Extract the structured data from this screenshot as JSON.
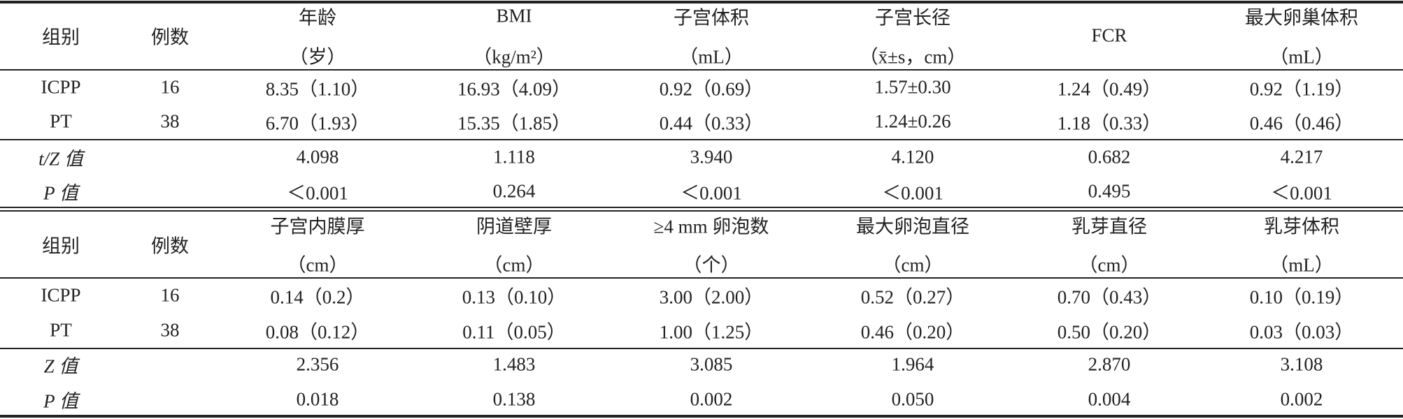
{
  "sections": [
    {
      "columns": [
        {
          "name": "组别"
        },
        {
          "name": "例数"
        },
        {
          "name": "年龄",
          "unit": "（岁）"
        },
        {
          "name": "BMI",
          "unit": "（kg/m²）"
        },
        {
          "name": "子宫体积",
          "unit": "（mL）"
        },
        {
          "name": "子宫长径",
          "unit": "（x̄±s，cm）"
        },
        {
          "name": "FCR"
        },
        {
          "name": "最大卵巢体积",
          "unit": "（mL）"
        }
      ],
      "groups": [
        [
          "ICPP",
          "16",
          "8.35（1.10）",
          "16.93（4.09）",
          "0.92（0.69）",
          "1.57±0.30",
          "1.24（0.49）",
          "0.92（1.19）"
        ],
        [
          "PT",
          "38",
          "6.70（1.93）",
          "15.35（1.85）",
          "0.44（0.33）",
          "1.24±0.26",
          "1.18（0.33）",
          "0.46（0.46）"
        ]
      ],
      "stats": [
        {
          "label": "t/Z 值",
          "values": [
            "4.098",
            "1.118",
            "3.940",
            "4.120",
            "0.682",
            "4.217"
          ]
        },
        {
          "label": "P 值",
          "values": [
            "＜0.001",
            "0.264",
            "＜0.001",
            "＜0.001",
            "0.495",
            "＜0.001"
          ]
        }
      ]
    },
    {
      "columns": [
        {
          "name": "组别"
        },
        {
          "name": "例数"
        },
        {
          "name": "子宫内膜厚",
          "unit": "（cm）"
        },
        {
          "name": "阴道壁厚",
          "unit": "（cm）"
        },
        {
          "name": "≥4 mm 卵泡数",
          "unit": "（个）"
        },
        {
          "name": "最大卵泡直径",
          "unit": "（cm）"
        },
        {
          "name": "乳芽直径",
          "unit": "（cm）"
        },
        {
          "name": "乳芽体积",
          "unit": "（mL）"
        }
      ],
      "groups": [
        [
          "ICPP",
          "16",
          "0.14（0.2）",
          "0.13（0.10）",
          "3.00（2.00）",
          "0.52（0.27）",
          "0.70（0.43）",
          "0.10（0.19）"
        ],
        [
          "PT",
          "38",
          "0.08（0.12）",
          "0.11（0.05）",
          "1.00（1.25）",
          "0.46（0.20）",
          "0.50（0.20）",
          "0.03（0.03）"
        ]
      ],
      "stats": [
        {
          "label": "Z 值",
          "values": [
            "2.356",
            "1.483",
            "3.085",
            "1.964",
            "2.870",
            "3.108"
          ]
        },
        {
          "label": "P 值",
          "values": [
            "0.018",
            "0.138",
            "0.002",
            "0.050",
            "0.004",
            "0.002"
          ]
        }
      ]
    }
  ]
}
